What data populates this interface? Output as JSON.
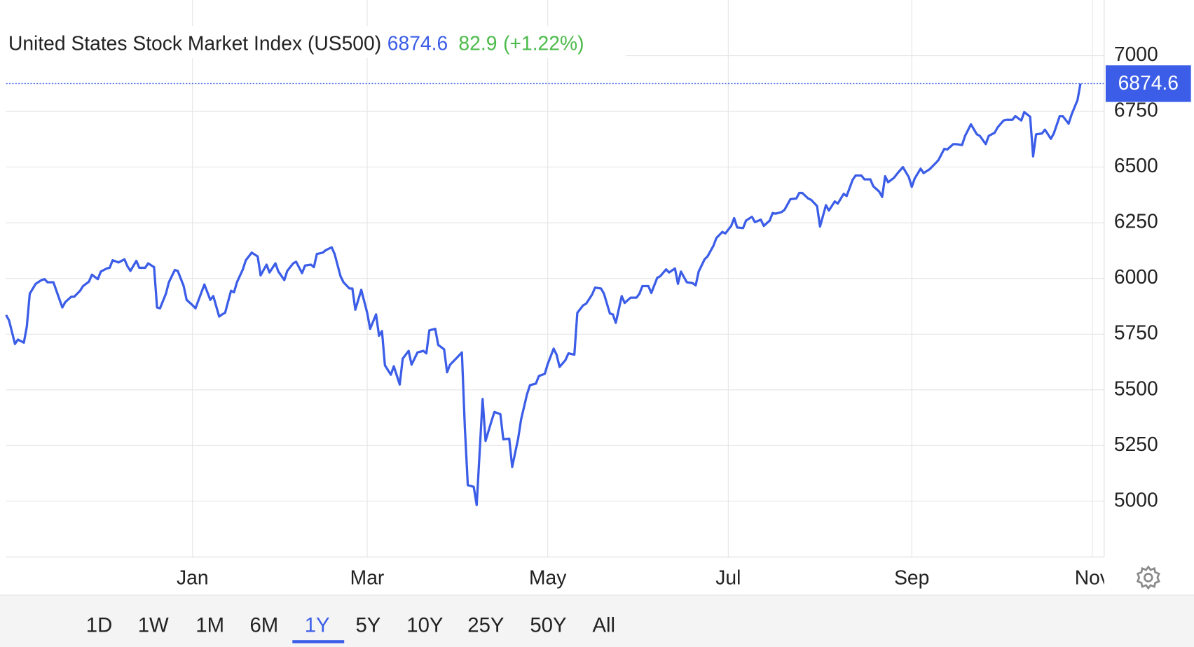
{
  "chart_data": {
    "type": "line",
    "title": "United States Stock Market Index (US500)",
    "price": 6874.6,
    "change": 82.9,
    "change_label": "(+1.22%)",
    "xlim": [
      0,
      371
    ],
    "xticks": [
      {
        "value": 63,
        "label": "Jan"
      },
      {
        "value": 122,
        "label": "Mar"
      },
      {
        "value": 183,
        "label": "May"
      },
      {
        "value": 244,
        "label": "Jul"
      },
      {
        "value": 306,
        "label": "Sep"
      },
      {
        "value": 367,
        "label": "Nov"
      }
    ],
    "ylim": [
      4750,
      7250
    ],
    "yticks": [
      5000,
      5250,
      5500,
      5750,
      6000,
      6250,
      6500,
      6750,
      7000
    ],
    "grid": true,
    "x": [
      0,
      1,
      3,
      4,
      6,
      7,
      8,
      10,
      12,
      13,
      14,
      16,
      17,
      19,
      20,
      22,
      23,
      25,
      26,
      28,
      29,
      31,
      32,
      34,
      35,
      36,
      38,
      40,
      41,
      42,
      44,
      45,
      47,
      48,
      50,
      51,
      52,
      54,
      55,
      57,
      58,
      60,
      61,
      63,
      64,
      66,
      67,
      69,
      70,
      72,
      73,
      74,
      76,
      77,
      78,
      80,
      81,
      83,
      85,
      86,
      88,
      89,
      91,
      92,
      94,
      95,
      97,
      98,
      100,
      101,
      103,
      104,
      105,
      107,
      108,
      110,
      111,
      113,
      114,
      116,
      117,
      118,
      120,
      122,
      123,
      125,
      126,
      127,
      128,
      130,
      131,
      133,
      134,
      136,
      137,
      139,
      141,
      142,
      143,
      145,
      146,
      148,
      149,
      150,
      152,
      154,
      155,
      156,
      158,
      159,
      161,
      162,
      164,
      165,
      167,
      168,
      170,
      171,
      173,
      174,
      176,
      177,
      179,
      180,
      182,
      183,
      185,
      186,
      187,
      189,
      190,
      192,
      193,
      195,
      196,
      198,
      199,
      201,
      202,
      204,
      205,
      206,
      208,
      209,
      211,
      213,
      214,
      215,
      217,
      218,
      220,
      221,
      223,
      224,
      226,
      227,
      228,
      230,
      232,
      233,
      234,
      236,
      237,
      239,
      240,
      242,
      243,
      245,
      246,
      247,
      249,
      250,
      252,
      253,
      255,
      256,
      258,
      259,
      260,
      262,
      263,
      265,
      267,
      268,
      269,
      271,
      272,
      274,
      275,
      277,
      278,
      280,
      281,
      283,
      284,
      286,
      287,
      289,
      290,
      292,
      293,
      295,
      296,
      297,
      298,
      300,
      301,
      303,
      305,
      306,
      307,
      309,
      310,
      312,
      314,
      315,
      317,
      318,
      320,
      321,
      323,
      324,
      326,
      328,
      329,
      331,
      332,
      334,
      335,
      337,
      338,
      340,
      341,
      343,
      344,
      346,
      347,
      348,
      350,
      351,
      353,
      354,
      356,
      357,
      359,
      360,
      362,
      363
    ],
    "series": [
      {
        "name": "US500",
        "color": "#3b5de7",
        "values": [
          5836,
          5812,
          5706,
          5726,
          5712,
          5784,
          5932,
          5976,
          5993,
          5997,
          5983,
          5983,
          5945,
          5870,
          5894,
          5918,
          5918,
          5945,
          5966,
          5986,
          6017,
          5997,
          6031,
          6045,
          6048,
          6082,
          6072,
          6086,
          6055,
          6034,
          6079,
          6048,
          6048,
          6068,
          6051,
          5870,
          5866,
          5932,
          5983,
          6038,
          6034,
          5966,
          5904,
          5880,
          5866,
          5938,
          5973,
          5904,
          5921,
          5829,
          5839,
          5846,
          5945,
          5938,
          5983,
          6041,
          6082,
          6116,
          6099,
          6014,
          6062,
          6027,
          6068,
          6031,
          5993,
          6034,
          6068,
          6075,
          6024,
          6058,
          6062,
          6051,
          6110,
          6116,
          6127,
          6140,
          6110,
          6010,
          5983,
          5955,
          5955,
          5860,
          5949,
          5846,
          5774,
          5839,
          5743,
          5764,
          5610,
          5568,
          5606,
          5524,
          5640,
          5675,
          5613,
          5668,
          5675,
          5664,
          5767,
          5774,
          5702,
          5682,
          5579,
          5613,
          5640,
          5668,
          5332,
          5072,
          5065,
          4983,
          5459,
          5271,
          5360,
          5401,
          5391,
          5278,
          5281,
          5154,
          5281,
          5367,
          5480,
          5521,
          5528,
          5562,
          5572,
          5616,
          5685,
          5658,
          5603,
          5634,
          5664,
          5658,
          5846,
          5880,
          5887,
          5928,
          5959,
          5955,
          5932,
          5843,
          5839,
          5801,
          5921,
          5890,
          5914,
          5914,
          5932,
          5966,
          5966,
          5935,
          6003,
          6010,
          6041,
          6027,
          6045,
          5976,
          6031,
          5983,
          5979,
          5969,
          6031,
          6086,
          6099,
          6147,
          6182,
          6209,
          6202,
          6236,
          6271,
          6229,
          6226,
          6260,
          6277,
          6253,
          6264,
          6236,
          6260,
          6294,
          6291,
          6298,
          6308,
          6356,
          6359,
          6384,
          6384,
          6359,
          6353,
          6325,
          6233,
          6329,
          6305,
          6346,
          6336,
          6380,
          6370,
          6442,
          6462,
          6462,
          6445,
          6445,
          6414,
          6390,
          6366,
          6459,
          6432,
          6452,
          6469,
          6500,
          6455,
          6411,
          6449,
          6493,
          6473,
          6490,
          6517,
          6531,
          6582,
          6579,
          6603,
          6603,
          6599,
          6640,
          6692,
          6647,
          6640,
          6603,
          6640,
          6654,
          6678,
          6709,
          6712,
          6712,
          6729,
          6709,
          6747,
          6726,
          6548,
          6647,
          6651,
          6668,
          6627,
          6651,
          6729,
          6729,
          6695,
          6736,
          6801,
          6874.6
        ]
      }
    ]
  },
  "ranges": [
    "1D",
    "1W",
    "1M",
    "6M",
    "1Y",
    "5Y",
    "10Y",
    "25Y",
    "50Y",
    "All"
  ],
  "selected_range": "1Y"
}
